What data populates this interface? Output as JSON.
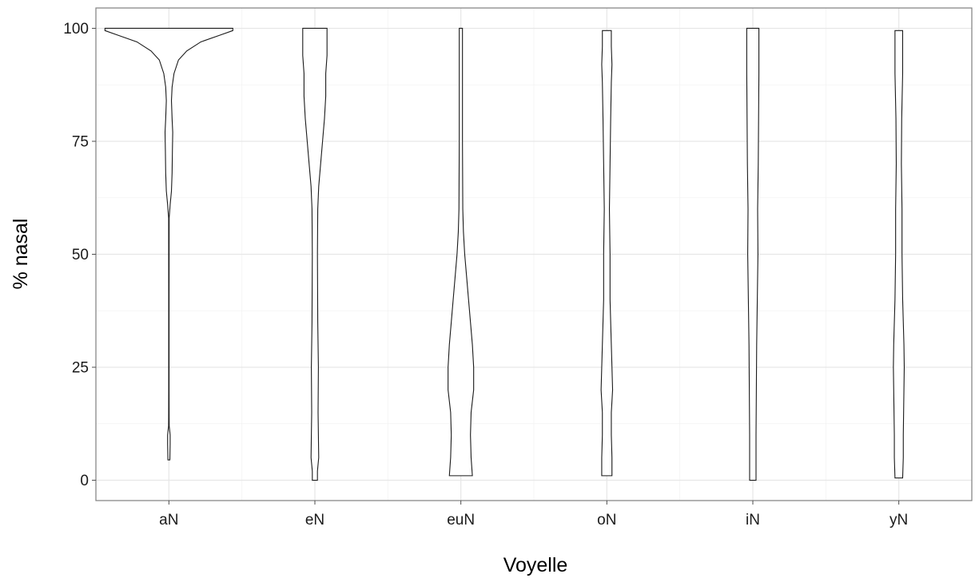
{
  "chart_data": {
    "type": "violin",
    "xlabel": "Voyelle",
    "ylabel": "% nasal",
    "ylim": [
      -4.5,
      104.5
    ],
    "yticks": [
      0,
      25,
      50,
      75,
      100
    ],
    "grid": true,
    "legend": "none",
    "colors": {
      "outline": "#1a1a1a",
      "fill": "#ffffff",
      "grid": "#e6e6e6",
      "border": "#7f7f7f"
    },
    "categories": [
      "aN",
      "eN",
      "euN",
      "oN",
      "iN",
      "yN"
    ],
    "series": [
      {
        "category": "aN",
        "min": 4.5,
        "max": 100,
        "profile": [
          [
            4.5,
            0.015
          ],
          [
            8,
            0.02
          ],
          [
            10,
            0.02
          ],
          [
            12,
            0.005
          ],
          [
            14,
            0.004
          ],
          [
            20,
            0.003
          ],
          [
            40,
            0.003
          ],
          [
            58,
            0.004
          ],
          [
            61,
            0.02
          ],
          [
            64,
            0.04
          ],
          [
            68,
            0.05
          ],
          [
            73,
            0.055
          ],
          [
            77,
            0.06
          ],
          [
            80,
            0.05
          ],
          [
            84,
            0.04
          ],
          [
            87,
            0.05
          ],
          [
            90,
            0.08
          ],
          [
            93,
            0.15
          ],
          [
            95,
            0.28
          ],
          [
            97,
            0.5
          ],
          [
            98.5,
            0.8
          ],
          [
            99.5,
            1.0
          ],
          [
            100,
            1.0
          ]
        ]
      },
      {
        "category": "eN",
        "min": 0,
        "max": 100,
        "profile": [
          [
            0,
            0.04
          ],
          [
            2,
            0.04
          ],
          [
            5,
            0.06
          ],
          [
            15,
            0.05
          ],
          [
            25,
            0.055
          ],
          [
            35,
            0.045
          ],
          [
            50,
            0.04
          ],
          [
            60,
            0.045
          ],
          [
            65,
            0.06
          ],
          [
            70,
            0.09
          ],
          [
            75,
            0.12
          ],
          [
            80,
            0.15
          ],
          [
            85,
            0.17
          ],
          [
            90,
            0.17
          ],
          [
            94,
            0.19
          ],
          [
            97,
            0.19
          ],
          [
            100,
            0.19
          ]
        ]
      },
      {
        "category": "euN",
        "min": 1,
        "max": 100,
        "profile": [
          [
            1,
            0.18
          ],
          [
            3,
            0.17
          ],
          [
            5,
            0.16
          ],
          [
            10,
            0.15
          ],
          [
            15,
            0.16
          ],
          [
            20,
            0.2
          ],
          [
            25,
            0.2
          ],
          [
            30,
            0.18
          ],
          [
            35,
            0.15
          ],
          [
            40,
            0.12
          ],
          [
            45,
            0.09
          ],
          [
            50,
            0.06
          ],
          [
            55,
            0.04
          ],
          [
            60,
            0.03
          ],
          [
            75,
            0.025
          ],
          [
            90,
            0.025
          ],
          [
            100,
            0.025
          ]
        ]
      },
      {
        "category": "oN",
        "min": 1,
        "max": 99.5,
        "profile": [
          [
            1,
            0.08
          ],
          [
            5,
            0.08
          ],
          [
            10,
            0.07
          ],
          [
            15,
            0.07
          ],
          [
            20,
            0.09
          ],
          [
            25,
            0.08
          ],
          [
            30,
            0.07
          ],
          [
            40,
            0.05
          ],
          [
            50,
            0.05
          ],
          [
            60,
            0.04
          ],
          [
            70,
            0.05
          ],
          [
            80,
            0.06
          ],
          [
            88,
            0.07
          ],
          [
            92,
            0.08
          ],
          [
            96,
            0.07
          ],
          [
            99.5,
            0.07
          ]
        ]
      },
      {
        "category": "iN",
        "min": 0,
        "max": 100,
        "profile": [
          [
            0,
            0.05
          ],
          [
            10,
            0.05
          ],
          [
            20,
            0.055
          ],
          [
            30,
            0.06
          ],
          [
            40,
            0.07
          ],
          [
            50,
            0.08
          ],
          [
            60,
            0.075
          ],
          [
            70,
            0.085
          ],
          [
            80,
            0.09
          ],
          [
            90,
            0.095
          ],
          [
            100,
            0.095
          ]
        ]
      },
      {
        "category": "yN",
        "min": 0.5,
        "max": 99.5,
        "profile": [
          [
            0.5,
            0.06
          ],
          [
            5,
            0.07
          ],
          [
            10,
            0.07
          ],
          [
            20,
            0.08
          ],
          [
            25,
            0.085
          ],
          [
            30,
            0.08
          ],
          [
            40,
            0.06
          ],
          [
            50,
            0.05
          ],
          [
            60,
            0.05
          ],
          [
            70,
            0.04
          ],
          [
            80,
            0.045
          ],
          [
            90,
            0.06
          ],
          [
            99.5,
            0.06
          ]
        ]
      }
    ]
  }
}
